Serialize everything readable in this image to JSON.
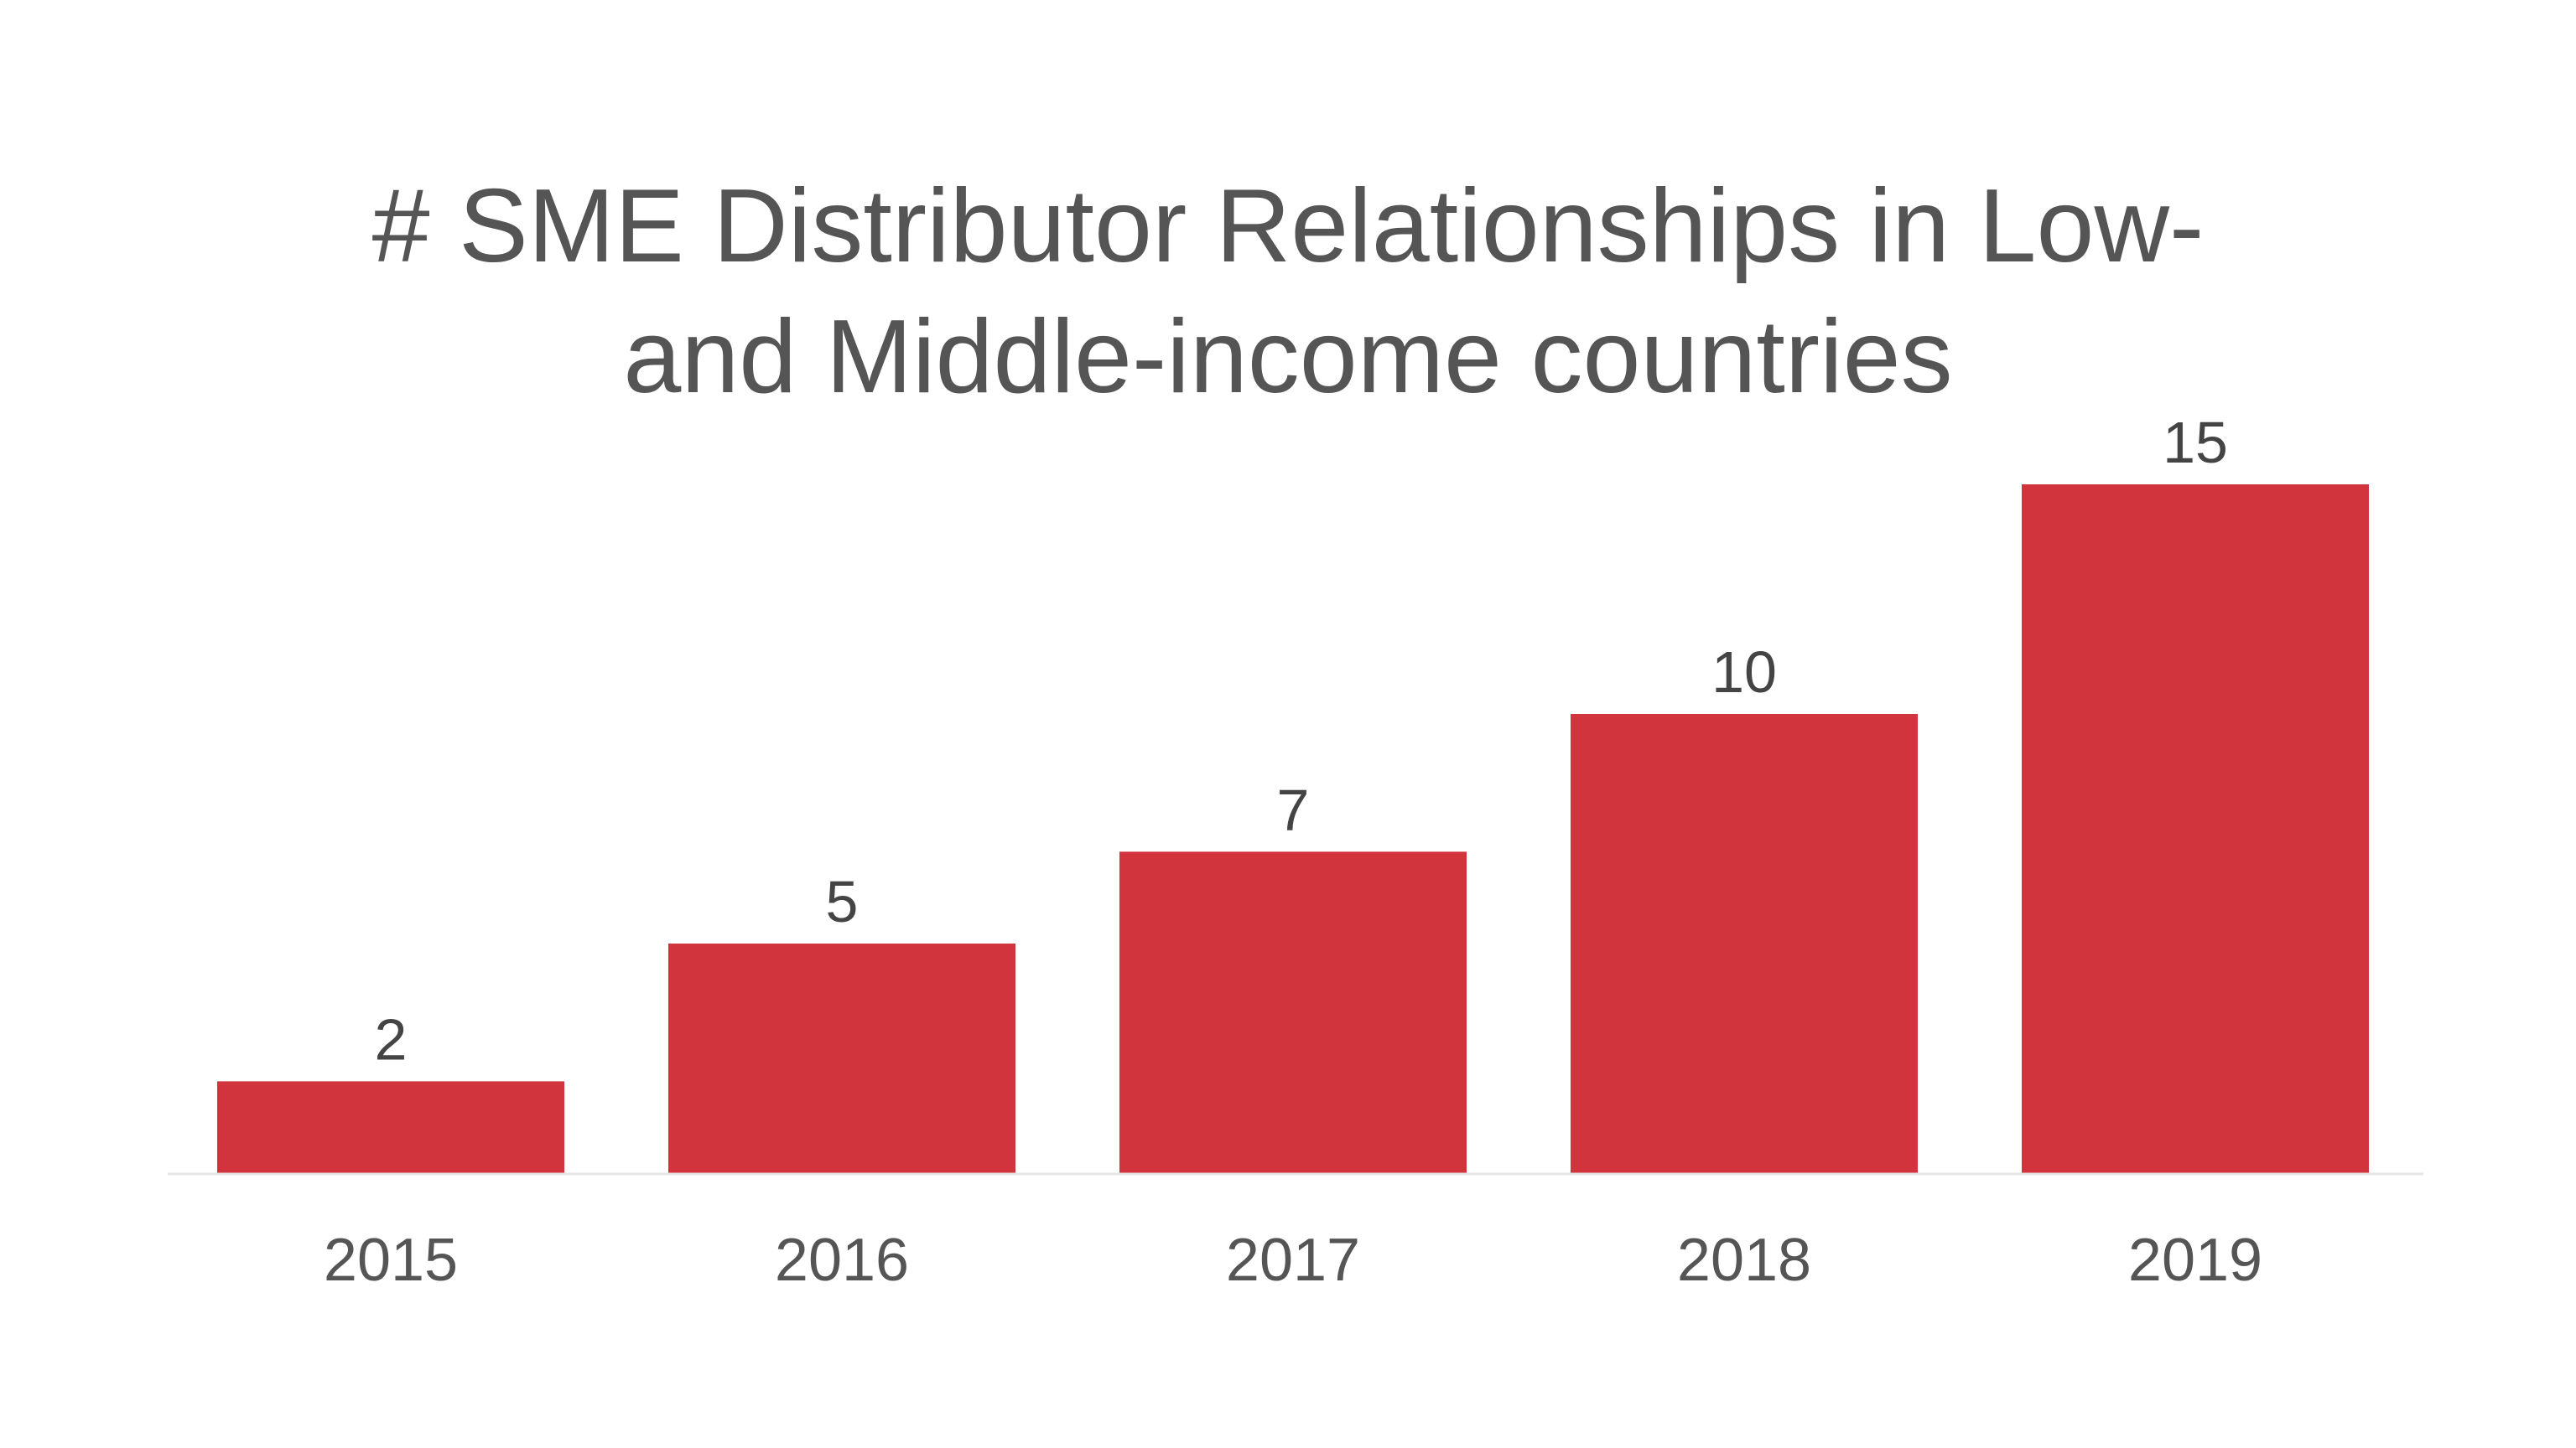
{
  "chart_data": {
    "type": "bar",
    "title": "# SME Distributor Relationships in Low- and Middle-income countries",
    "title_lines": [
      "# SME Distributor Relationships in Low-",
      "and Middle-income countries"
    ],
    "categories": [
      "2015",
      "2016",
      "2017",
      "2018",
      "2019"
    ],
    "values": [
      2,
      5,
      7,
      10,
      15
    ],
    "data_labels": [
      "2",
      "5",
      "7",
      "10",
      "15"
    ],
    "xlabel": "",
    "ylabel": "",
    "ylim": [
      0,
      15
    ],
    "grid": false,
    "legend": "none",
    "bar_color": "#D1343D",
    "axis_color": "#E6E6E6",
    "text_color": "#555555"
  }
}
